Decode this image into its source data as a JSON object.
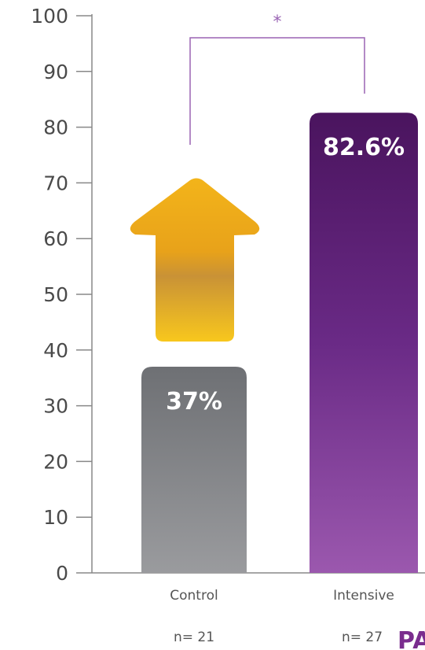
{
  "chart_data": {
    "type": "bar",
    "categories": [
      "Control",
      "Intensive"
    ],
    "values": [
      37,
      82.6
    ],
    "value_labels": [
      "37%",
      "82.6%"
    ],
    "sample_sizes": [
      "n= 21",
      "n= 27"
    ],
    "ylim": [
      0,
      100
    ],
    "yticks": [
      0,
      10,
      20,
      30,
      40,
      50,
      60,
      70,
      80,
      90,
      100
    ],
    "grid": false,
    "significance_marker": "*",
    "bar_colors": [
      "#7a7c80",
      "#6a2a86"
    ],
    "arrow_color": "#f0b21c",
    "bracket_color": "#9a64b4"
  },
  "logo_text": "PA"
}
